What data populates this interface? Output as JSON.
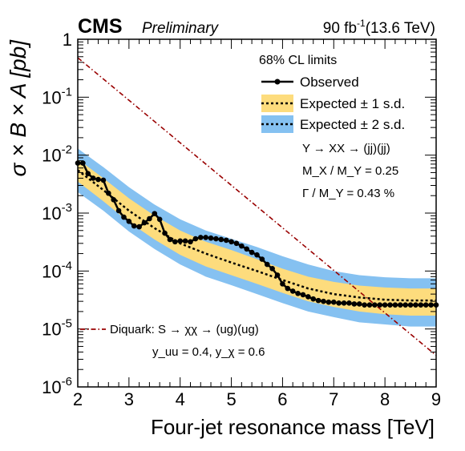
{
  "header": {
    "experiment": "CMS",
    "status": "Preliminary",
    "lumi_value": "90 fb",
    "lumi_exponent": "-1",
    "energy": "(13.6 TeV)"
  },
  "legend": {
    "heading": "68% CL limits",
    "observed": "Observed",
    "expected_1sd": "Expected ± 1 s.d.",
    "expected_2sd": "Expected ± 2 s.d."
  },
  "annotations": {
    "process": "Y → XX → (jj)(jj)",
    "mass_ratio": "M_X / M_Y = 0.25",
    "width_ratio": "Γ / M_Y = 0.43 %",
    "theory_label": "Diquark: S → χχ → (ug)(ug)",
    "couplings": "y_uu = 0.4, y_χ = 0.6"
  },
  "colors": {
    "band_2sd": "#85c1f1",
    "band_1sd": "#fddc7d",
    "observed": "#000000",
    "expected": "#000000",
    "theory": "#990000"
  },
  "chart_data": {
    "type": "line",
    "title": "",
    "xlabel": "Four-jet resonance mass [TeV]",
    "ylabel": "σ × B × A [pb]",
    "xlim": [
      2,
      9
    ],
    "ylim": [
      1e-06,
      1
    ],
    "yscale": "log",
    "x_ticks": [
      2,
      3,
      4,
      5,
      6,
      7,
      8,
      9
    ],
    "y_ticks": [
      1e-06,
      1e-05,
      0.0001,
      0.001,
      0.01,
      0.1,
      1
    ],
    "y_tick_labels": [
      {
        "base": "10",
        "exp": "-6"
      },
      {
        "base": "10",
        "exp": "-5"
      },
      {
        "base": "10",
        "exp": "-4"
      },
      {
        "base": "10",
        "exp": "-3"
      },
      {
        "base": "10",
        "exp": "-2"
      },
      {
        "base": "10",
        "exp": "-1"
      },
      {
        "base": "1",
        "exp": ""
      }
    ],
    "observed": {
      "name": "Observed",
      "x": [
        2.0,
        2.1,
        2.2,
        2.3,
        2.4,
        2.5,
        2.6,
        2.7,
        2.8,
        2.9,
        3.0,
        3.1,
        3.2,
        3.3,
        3.4,
        3.5,
        3.6,
        3.7,
        3.8,
        3.9,
        4.0,
        4.1,
        4.2,
        4.3,
        4.4,
        4.5,
        4.6,
        4.7,
        4.8,
        4.9,
        5.0,
        5.1,
        5.2,
        5.3,
        5.4,
        5.5,
        5.6,
        5.7,
        5.8,
        5.9,
        6.0,
        6.1,
        6.2,
        6.3,
        6.4,
        6.5,
        6.6,
        6.7,
        6.8,
        6.9,
        7.0,
        7.1,
        7.2,
        7.3,
        7.4,
        7.5,
        7.6,
        7.7,
        7.8,
        7.9,
        8.0,
        8.1,
        8.2,
        8.3,
        8.4,
        8.5,
        8.6,
        8.7,
        8.8,
        8.9,
        9.0
      ],
      "y": [
        0.0073,
        0.0073,
        0.0048,
        0.004,
        0.0038,
        0.0037,
        0.0022,
        0.0017,
        0.0011,
        0.00085,
        0.00072,
        0.0006,
        0.00058,
        0.00068,
        0.0008,
        0.00098,
        0.00078,
        0.00045,
        0.00035,
        0.00032,
        0.00033,
        0.00033,
        0.00032,
        0.00036,
        0.00038,
        0.00038,
        0.00037,
        0.00036,
        0.00035,
        0.00034,
        0.00032,
        0.0003,
        0.00027,
        0.00024,
        0.00021,
        0.00019,
        0.00016,
        0.00013,
        0.00011,
        8.5e-05,
        6e-05,
        5e-05,
        4.5e-05,
        4.1e-05,
        3.9e-05,
        3.6e-05,
        3.3e-05,
        3.1e-05,
        3e-05,
        2.9e-05,
        2.9e-05,
        2.8e-05,
        2.8e-05,
        2.8e-05,
        2.7e-05,
        2.7e-05,
        2.6e-05,
        2.6e-05,
        2.6e-05,
        2.6e-05,
        2.6e-05,
        2.6e-05,
        2.6e-05,
        2.6e-05,
        2.6e-05,
        2.6e-05,
        2.6e-05,
        2.6e-05,
        2.6e-05,
        2.6e-05,
        2.6e-05
      ]
    },
    "expected": {
      "name": "Expected",
      "x": [
        2.0,
        2.5,
        3.0,
        3.5,
        4.0,
        4.5,
        5.0,
        5.5,
        6.0,
        6.5,
        7.0,
        7.5,
        8.0,
        8.5,
        9.0
      ],
      "median": [
        0.0055,
        0.0025,
        0.0011,
        0.00055,
        0.0003,
        0.0002,
        0.00014,
        0.0001,
        7e-05,
        5e-05,
        4e-05,
        3.5e-05,
        3.2e-05,
        3.1e-05,
        3.1e-05
      ],
      "minus1": [
        0.0035,
        0.0016,
        0.0007,
        0.00035,
        0.00019,
        0.00012,
        8.5e-05,
        6e-05,
        4.2e-05,
        3e-05,
        2.4e-05,
        2e-05,
        1.8e-05,
        1.7e-05,
        1.7e-05
      ],
      "plus1": [
        0.0085,
        0.004,
        0.0018,
        0.0009,
        0.0005,
        0.00032,
        0.00023,
        0.00016,
        0.00011,
        8e-05,
        6.5e-05,
        5.6e-05,
        5.2e-05,
        5e-05,
        5e-05
      ],
      "minus2": [
        0.0023,
        0.0011,
        0.00048,
        0.00024,
        0.00013,
        8e-05,
        5.7e-05,
        4e-05,
        2.8e-05,
        2e-05,
        1.6e-05,
        1.3e-05,
        1.2e-05,
        1.1e-05,
        1.1e-05
      ],
      "plus2": [
        0.013,
        0.0062,
        0.0028,
        0.0014,
        0.00078,
        0.0005,
        0.00036,
        0.00026,
        0.00018,
        0.00013,
        0.0001,
        8.5e-05,
        7.8e-05,
        7.5e-05,
        7.5e-05
      ]
    },
    "theory": {
      "name": "Diquark: S → χχ → (ug)(ug)",
      "x": [
        2.0,
        9.0
      ],
      "y": [
        0.48,
        3.5e-06
      ]
    }
  }
}
